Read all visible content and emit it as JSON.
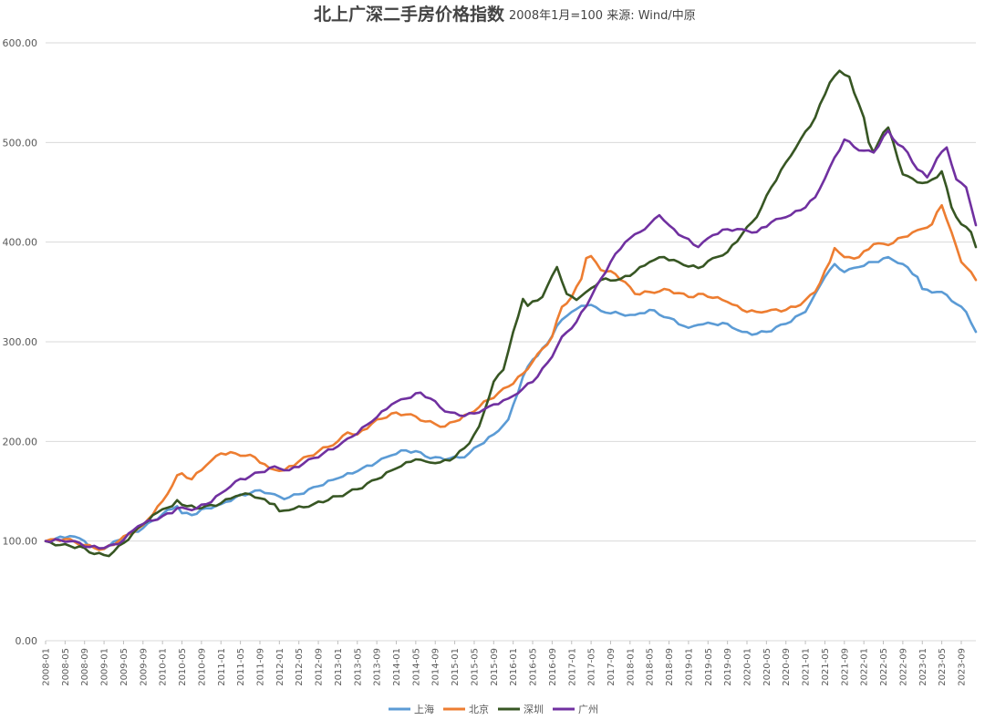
{
  "chart_data": {
    "type": "line",
    "title": "北上广深二手房价格指数",
    "subtitle": "2008年1月=100 来源: Wind/中原",
    "ylim": [
      0,
      600
    ],
    "yticks": [
      "0.00",
      "100.00",
      "200.00",
      "300.00",
      "400.00",
      "500.00",
      "600.00"
    ],
    "x_start": "2008-01",
    "x_end": "2023-12",
    "xticks": [
      "2008-01",
      "2008-05",
      "2008-09",
      "2009-01",
      "2009-05",
      "2009-09",
      "2010-01",
      "2010-05",
      "2010-09",
      "2011-01",
      "2011-05",
      "2011-09",
      "2012-01",
      "2012-05",
      "2012-09",
      "2013-01",
      "2013-05",
      "2013-09",
      "2014-01",
      "2014-05",
      "2014-09",
      "2015-01",
      "2015-05",
      "2015-09",
      "2016-01",
      "2016-05",
      "2016-09",
      "2017-01",
      "2017-05",
      "2017-09",
      "2018-01",
      "2018-05",
      "2018-09",
      "2019-01",
      "2019-05",
      "2019-09",
      "2020-01",
      "2020-05",
      "2020-09",
      "2021-01",
      "2021-05",
      "2021-09",
      "2022-01",
      "2022-05",
      "2022-09",
      "2023-01",
      "2023-05",
      "2023-09"
    ],
    "grid": true,
    "legend_position": "bottom",
    "series": [
      {
        "name": "上海",
        "color": "#5b9bd5",
        "anchors": [
          [
            "2008-01",
            100
          ],
          [
            "2008-06",
            105
          ],
          [
            "2008-09",
            100
          ],
          [
            "2008-10",
            94
          ],
          [
            "2009-01",
            92
          ],
          [
            "2009-04",
            101
          ],
          [
            "2009-09",
            113
          ],
          [
            "2010-01",
            127
          ],
          [
            "2010-04",
            135
          ],
          [
            "2010-05",
            128
          ],
          [
            "2010-07",
            126
          ],
          [
            "2010-10",
            133
          ],
          [
            "2011-01",
            137
          ],
          [
            "2011-04",
            144
          ],
          [
            "2011-07",
            148
          ],
          [
            "2011-09",
            151
          ],
          [
            "2011-12",
            147
          ],
          [
            "2012-02",
            142
          ],
          [
            "2012-05",
            147
          ],
          [
            "2012-09",
            155
          ],
          [
            "2013-01",
            163
          ],
          [
            "2013-05",
            170
          ],
          [
            "2013-09",
            179
          ],
          [
            "2013-12",
            186
          ],
          [
            "2014-03",
            191
          ],
          [
            "2014-06",
            189
          ],
          [
            "2014-08",
            183
          ],
          [
            "2014-12",
            183
          ],
          [
            "2015-03",
            184
          ],
          [
            "2015-06",
            196
          ],
          [
            "2015-09",
            207
          ],
          [
            "2015-12",
            222
          ],
          [
            "2016-03",
            265
          ],
          [
            "2016-05",
            282
          ],
          [
            "2016-08",
            298
          ],
          [
            "2016-10",
            316
          ],
          [
            "2017-01",
            330
          ],
          [
            "2017-03",
            336
          ],
          [
            "2017-05",
            337
          ],
          [
            "2017-07",
            331
          ],
          [
            "2017-11",
            328
          ],
          [
            "2018-02",
            327
          ],
          [
            "2018-05",
            332
          ],
          [
            "2018-09",
            324
          ],
          [
            "2019-01",
            314
          ],
          [
            "2019-03",
            317
          ],
          [
            "2019-06",
            318
          ],
          [
            "2019-09",
            318
          ],
          [
            "2019-12",
            310
          ],
          [
            "2020-03",
            308
          ],
          [
            "2020-05",
            310
          ],
          [
            "2020-09",
            318
          ],
          [
            "2021-01",
            330
          ],
          [
            "2021-03",
            348
          ],
          [
            "2021-05",
            365
          ],
          [
            "2021-07",
            378
          ],
          [
            "2021-09",
            370
          ],
          [
            "2021-12",
            375
          ],
          [
            "2022-03",
            380
          ],
          [
            "2022-06",
            385
          ],
          [
            "2022-09",
            378
          ],
          [
            "2022-12",
            365
          ],
          [
            "2023-01",
            353
          ],
          [
            "2023-04",
            350
          ],
          [
            "2023-06",
            347
          ],
          [
            "2023-08",
            338
          ],
          [
            "2023-10",
            330
          ],
          [
            "2023-12",
            310
          ]
        ]
      },
      {
        "name": "北京",
        "color": "#ed7d31",
        "anchors": [
          [
            "2008-01",
            100
          ],
          [
            "2008-05",
            102
          ],
          [
            "2008-09",
            96
          ],
          [
            "2008-11",
            93
          ],
          [
            "2009-01",
            92
          ],
          [
            "2009-04",
            100
          ],
          [
            "2009-09",
            116
          ],
          [
            "2010-01",
            140
          ],
          [
            "2010-02",
            147
          ],
          [
            "2010-04",
            166
          ],
          [
            "2010-05",
            168
          ],
          [
            "2010-07",
            162
          ],
          [
            "2010-10",
            176
          ],
          [
            "2011-01",
            188
          ],
          [
            "2011-04",
            188
          ],
          [
            "2011-08",
            184
          ],
          [
            "2011-11",
            173
          ],
          [
            "2012-02",
            171
          ],
          [
            "2012-05",
            180
          ],
          [
            "2012-09",
            190
          ],
          [
            "2013-01",
            200
          ],
          [
            "2013-03",
            209
          ],
          [
            "2013-05",
            207
          ],
          [
            "2013-08",
            218
          ],
          [
            "2013-12",
            228
          ],
          [
            "2014-03",
            227
          ],
          [
            "2014-05",
            225
          ],
          [
            "2014-07",
            220
          ],
          [
            "2014-11",
            215
          ],
          [
            "2015-01",
            220
          ],
          [
            "2015-04",
            228
          ],
          [
            "2015-08",
            242
          ],
          [
            "2015-12",
            255
          ],
          [
            "2016-03",
            268
          ],
          [
            "2016-05",
            280
          ],
          [
            "2016-09",
            305
          ],
          [
            "2016-11",
            335
          ],
          [
            "2017-01",
            345
          ],
          [
            "2017-03",
            363
          ],
          [
            "2017-04",
            384
          ],
          [
            "2017-05",
            386
          ],
          [
            "2017-07",
            372
          ],
          [
            "2017-10",
            368
          ],
          [
            "2018-01",
            355
          ],
          [
            "2018-02",
            348
          ],
          [
            "2018-05",
            350
          ],
          [
            "2018-09",
            352
          ],
          [
            "2019-01",
            345
          ],
          [
            "2019-04",
            348
          ],
          [
            "2019-09",
            340
          ],
          [
            "2019-12",
            332
          ],
          [
            "2020-03",
            330
          ],
          [
            "2020-06",
            332
          ],
          [
            "2020-09",
            332
          ],
          [
            "2020-12",
            337
          ],
          [
            "2021-03",
            350
          ],
          [
            "2021-06",
            380
          ],
          [
            "2021-07",
            394
          ],
          [
            "2021-09",
            385
          ],
          [
            "2021-12",
            385
          ],
          [
            "2022-03",
            398
          ],
          [
            "2022-06",
            397
          ],
          [
            "2022-09",
            405
          ],
          [
            "2022-12",
            412
          ],
          [
            "2023-03",
            418
          ],
          [
            "2023-04",
            430
          ],
          [
            "2023-05",
            437
          ],
          [
            "2023-07",
            410
          ],
          [
            "2023-09",
            380
          ],
          [
            "2023-10",
            375
          ],
          [
            "2023-12",
            362
          ]
        ]
      },
      {
        "name": "深圳",
        "color": "#375623",
        "anchors": [
          [
            "2008-01",
            100
          ],
          [
            "2008-04",
            96
          ],
          [
            "2008-06",
            95
          ],
          [
            "2008-09",
            93
          ],
          [
            "2008-11",
            87
          ],
          [
            "2009-01",
            86
          ],
          [
            "2009-02",
            85
          ],
          [
            "2009-05",
            98
          ],
          [
            "2009-09",
            117
          ],
          [
            "2010-01",
            132
          ],
          [
            "2010-03",
            135
          ],
          [
            "2010-04",
            141
          ],
          [
            "2010-06",
            135
          ],
          [
            "2010-09",
            133
          ],
          [
            "2011-01",
            138
          ],
          [
            "2011-04",
            145
          ],
          [
            "2011-07",
            147
          ],
          [
            "2011-09",
            143
          ],
          [
            "2011-12",
            137
          ],
          [
            "2012-01",
            130
          ],
          [
            "2012-03",
            131
          ],
          [
            "2012-08",
            137
          ],
          [
            "2013-01",
            145
          ],
          [
            "2013-05",
            152
          ],
          [
            "2013-09",
            162
          ],
          [
            "2014-01",
            173
          ],
          [
            "2014-05",
            182
          ],
          [
            "2014-07",
            180
          ],
          [
            "2014-10",
            179
          ],
          [
            "2015-01",
            184
          ],
          [
            "2015-04",
            198
          ],
          [
            "2015-06",
            215
          ],
          [
            "2015-09",
            260
          ],
          [
            "2015-11",
            272
          ],
          [
            "2016-01",
            310
          ],
          [
            "2016-02",
            325
          ],
          [
            "2016-03",
            343
          ],
          [
            "2016-04",
            336
          ],
          [
            "2016-07",
            345
          ],
          [
            "2016-10",
            375
          ],
          [
            "2016-12",
            348
          ],
          [
            "2017-02",
            342
          ],
          [
            "2017-04",
            350
          ],
          [
            "2017-07",
            362
          ],
          [
            "2017-11",
            363
          ],
          [
            "2018-02",
            370
          ],
          [
            "2018-05",
            380
          ],
          [
            "2018-08",
            385
          ],
          [
            "2018-12",
            377
          ],
          [
            "2019-03",
            374
          ],
          [
            "2019-06",
            384
          ],
          [
            "2019-09",
            390
          ],
          [
            "2019-12",
            408
          ],
          [
            "2020-03",
            425
          ],
          [
            "2020-06",
            455
          ],
          [
            "2020-09",
            480
          ],
          [
            "2020-12",
            503
          ],
          [
            "2021-03",
            525
          ],
          [
            "2021-06",
            560
          ],
          [
            "2021-08",
            572
          ],
          [
            "2021-10",
            566
          ],
          [
            "2021-11",
            550
          ],
          [
            "2022-01",
            525
          ],
          [
            "2022-02",
            500
          ],
          [
            "2022-03",
            490
          ],
          [
            "2022-05",
            510
          ],
          [
            "2022-06",
            515
          ],
          [
            "2022-09",
            468
          ],
          [
            "2022-12",
            460
          ],
          [
            "2023-02",
            460
          ],
          [
            "2023-04",
            465
          ],
          [
            "2023-05",
            471
          ],
          [
            "2023-07",
            435
          ],
          [
            "2023-09",
            418
          ],
          [
            "2023-11",
            410
          ],
          [
            "2023-12",
            395
          ]
        ]
      },
      {
        "name": "广州",
        "color": "#7030a0",
        "anchors": [
          [
            "2008-01",
            100
          ],
          [
            "2008-04",
            101
          ],
          [
            "2008-07",
            100
          ],
          [
            "2008-10",
            94
          ],
          [
            "2009-01",
            93
          ],
          [
            "2009-04",
            97
          ],
          [
            "2009-08",
            115
          ],
          [
            "2010-01",
            125
          ],
          [
            "2010-03",
            128
          ],
          [
            "2010-04",
            133
          ],
          [
            "2010-07",
            131
          ],
          [
            "2010-10",
            137
          ],
          [
            "2011-01",
            148
          ],
          [
            "2011-04",
            160
          ],
          [
            "2011-07",
            165
          ],
          [
            "2011-09",
            169
          ],
          [
            "2011-12",
            175
          ],
          [
            "2012-03",
            171
          ],
          [
            "2012-06",
            178
          ],
          [
            "2012-10",
            188
          ],
          [
            "2013-01",
            195
          ],
          [
            "2013-04",
            205
          ],
          [
            "2013-08",
            220
          ],
          [
            "2013-12",
            237
          ],
          [
            "2014-03",
            243
          ],
          [
            "2014-06",
            249
          ],
          [
            "2014-08",
            243
          ],
          [
            "2014-11",
            230
          ],
          [
            "2015-02",
            226
          ],
          [
            "2015-05",
            228
          ],
          [
            "2015-08",
            235
          ],
          [
            "2015-12",
            243
          ],
          [
            "2016-03",
            253
          ],
          [
            "2016-06",
            265
          ],
          [
            "2016-09",
            285
          ],
          [
            "2016-11",
            305
          ],
          [
            "2017-02",
            320
          ],
          [
            "2017-05",
            345
          ],
          [
            "2017-09",
            380
          ],
          [
            "2017-12",
            400
          ],
          [
            "2018-03",
            410
          ],
          [
            "2018-05",
            418
          ],
          [
            "2018-07",
            427
          ],
          [
            "2018-09",
            417
          ],
          [
            "2018-12",
            405
          ],
          [
            "2019-03",
            395
          ],
          [
            "2019-06",
            407
          ],
          [
            "2019-09",
            413
          ],
          [
            "2019-12",
            413
          ],
          [
            "2020-03",
            410
          ],
          [
            "2020-06",
            420
          ],
          [
            "2020-09",
            425
          ],
          [
            "2020-12",
            432
          ],
          [
            "2021-03",
            445
          ],
          [
            "2021-06",
            475
          ],
          [
            "2021-09",
            503
          ],
          [
            "2021-12",
            492
          ],
          [
            "2022-03",
            490
          ],
          [
            "2022-06",
            512
          ],
          [
            "2022-08",
            498
          ],
          [
            "2022-10",
            490
          ],
          [
            "2022-12",
            473
          ],
          [
            "2023-02",
            465
          ],
          [
            "2023-04",
            484
          ],
          [
            "2023-06",
            495
          ],
          [
            "2023-08",
            463
          ],
          [
            "2023-10",
            455
          ],
          [
            "2023-12",
            417
          ]
        ]
      }
    ]
  }
}
